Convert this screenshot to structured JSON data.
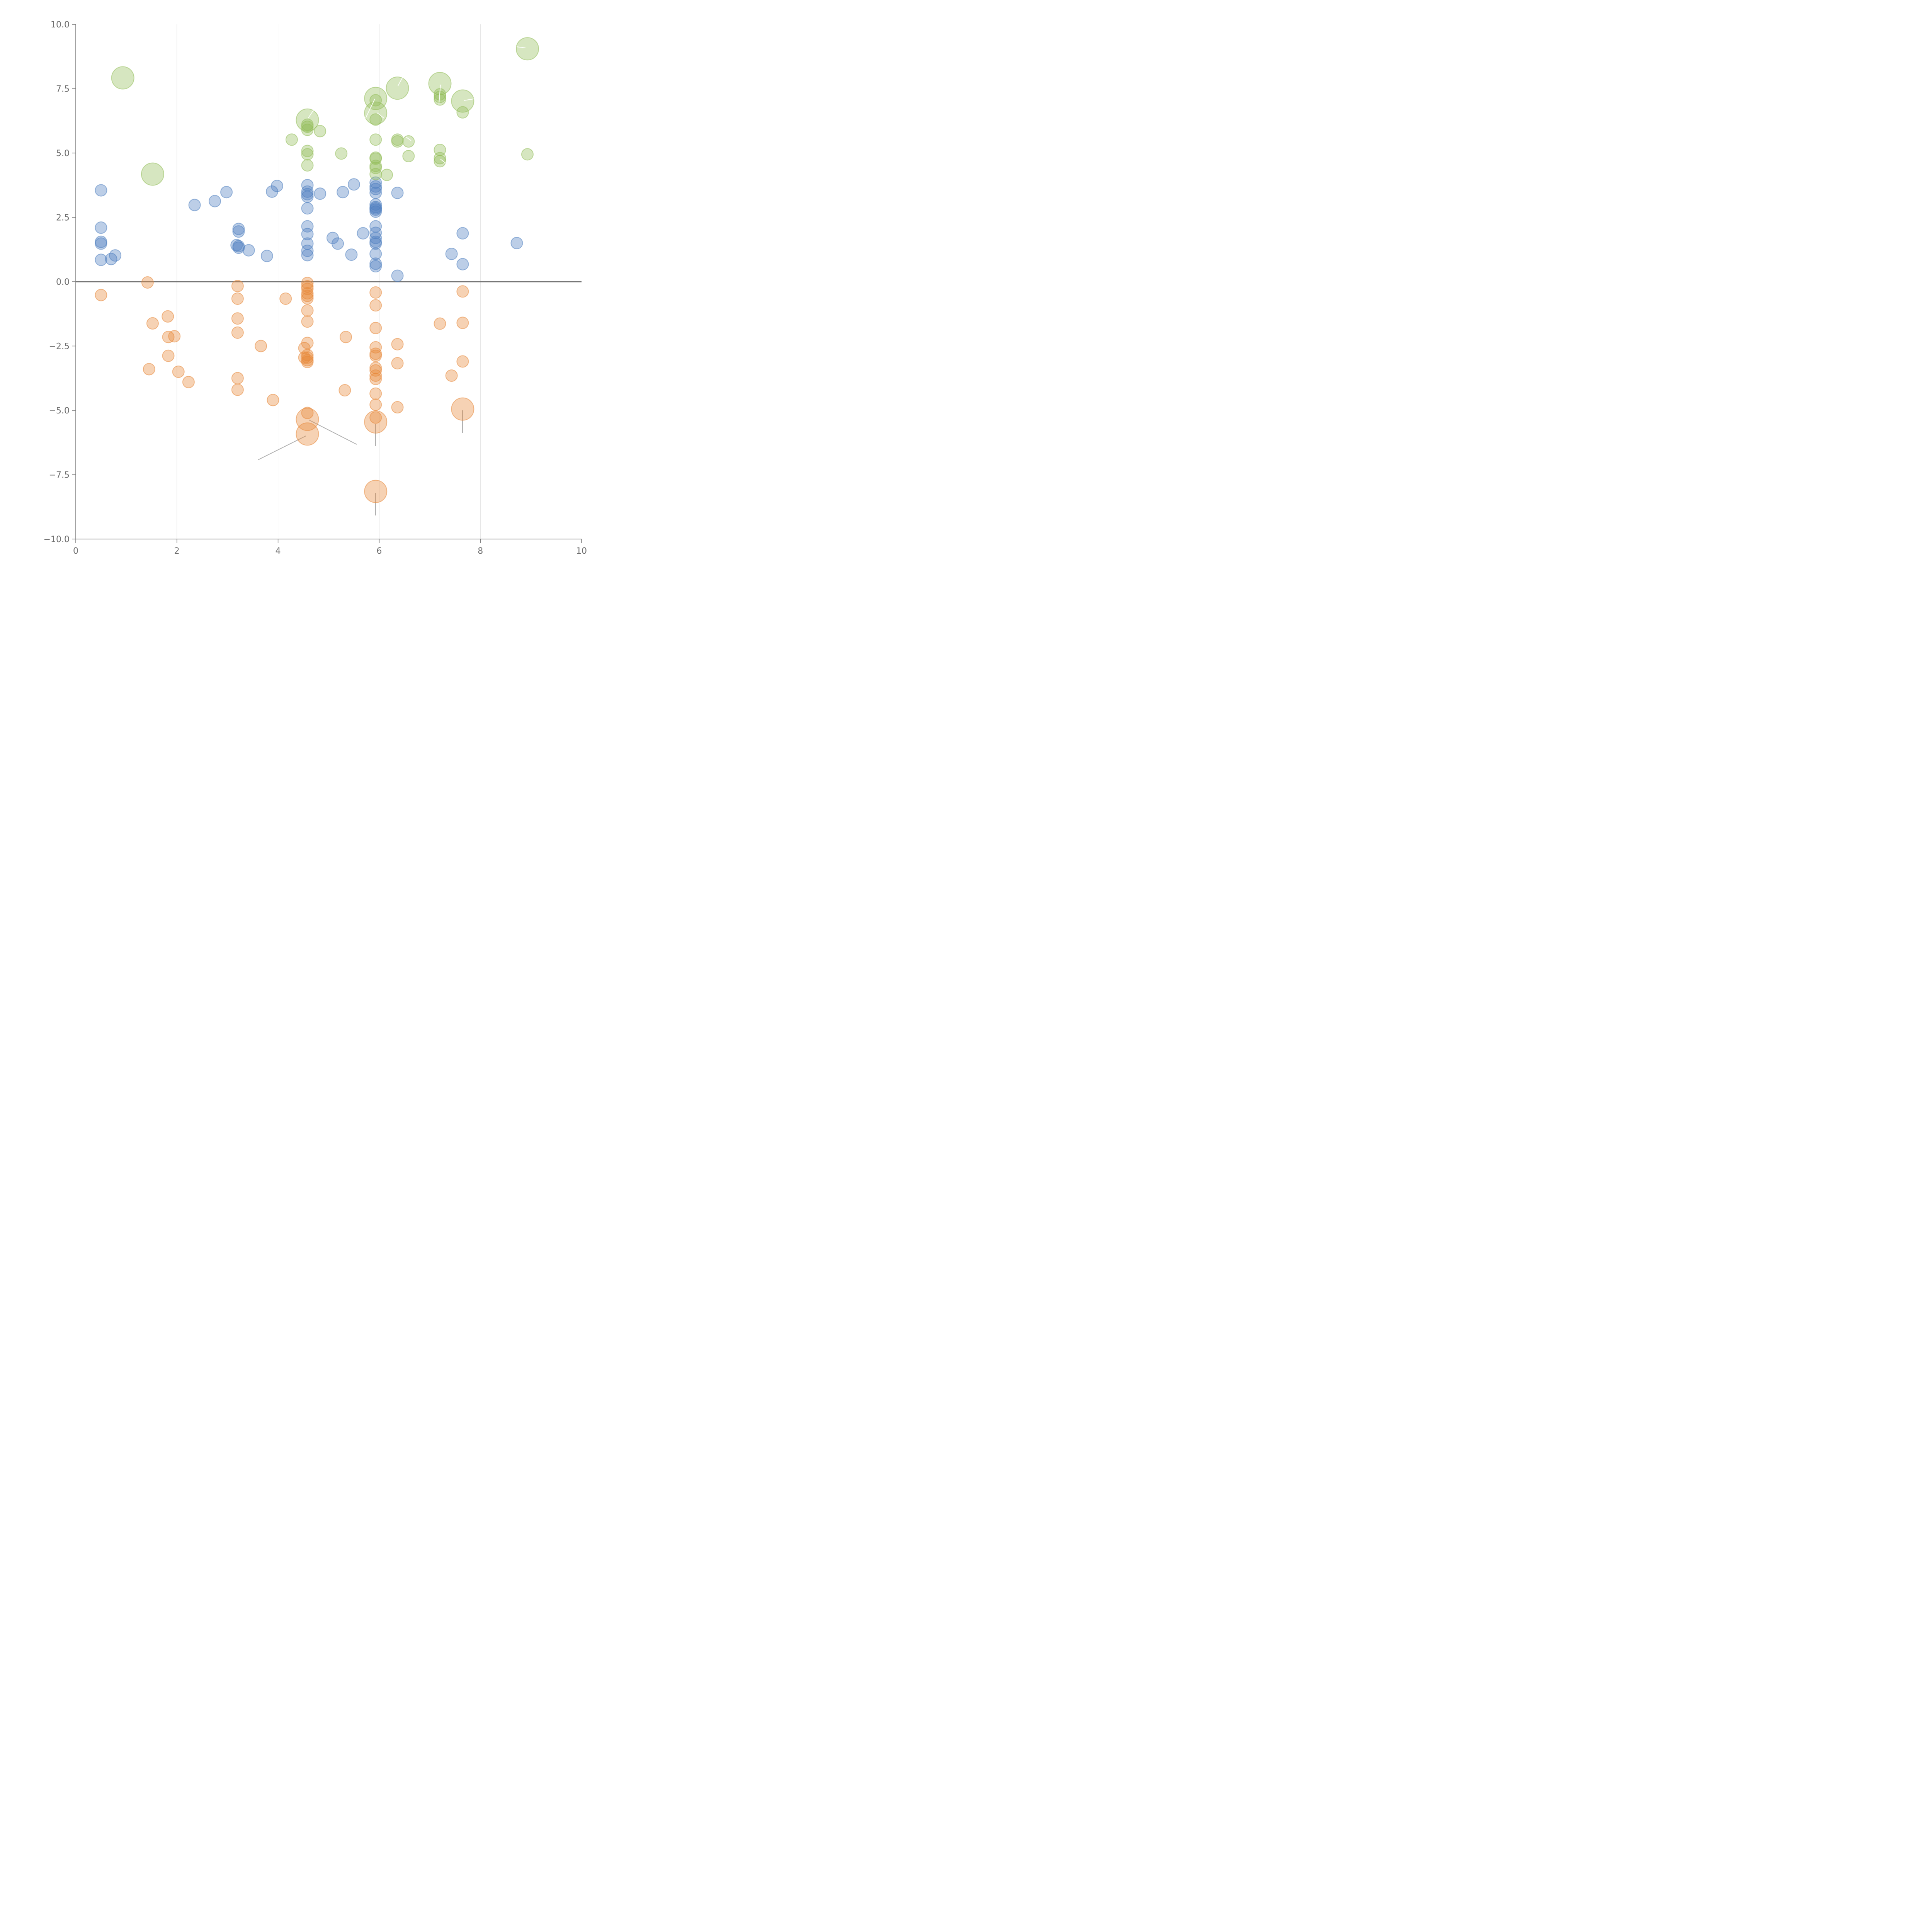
{
  "chart_data": {
    "type": "scatter",
    "title": "",
    "xlabel": "",
    "ylabel": "",
    "xlim": [
      0,
      10
    ],
    "ylim": [
      -10,
      10
    ],
    "grid": "vertical",
    "x_ticks": [
      0,
      2,
      4,
      6,
      8,
      10
    ],
    "y_ticks": [
      10.0,
      7.5,
      5.0,
      2.5,
      0.0,
      -2.5,
      -5.0,
      -7.5,
      -10.0
    ],
    "x_tick_labels": [
      "0",
      "2",
      "4",
      "6",
      "8",
      "10"
    ],
    "y_tick_labels": [
      "10.0",
      "7.5",
      "5.0",
      "2.5",
      "0.0",
      "−2.5",
      "−5.0",
      "−7.5",
      "−10.0"
    ],
    "reference_line_y": 0,
    "series": [
      {
        "name": "blue",
        "color": "#4f7fc0",
        "points": [
          [
            0.5,
            3.55,
            1
          ],
          [
            0.5,
            2.1,
            1
          ],
          [
            0.5,
            1.55,
            1
          ],
          [
            0.5,
            1.48,
            1
          ],
          [
            0.5,
            0.85,
            1
          ],
          [
            0.7,
            0.88,
            1
          ],
          [
            0.78,
            1.02,
            1
          ],
          [
            2.35,
            2.98,
            1
          ],
          [
            2.75,
            3.13,
            1
          ],
          [
            2.98,
            3.48,
            1
          ],
          [
            3.18,
            1.42,
            1
          ],
          [
            3.22,
            2.05,
            1
          ],
          [
            3.22,
            1.95,
            1
          ],
          [
            3.22,
            1.38,
            1
          ],
          [
            3.22,
            1.32,
            1
          ],
          [
            3.42,
            1.22,
            1
          ],
          [
            3.78,
            1.0,
            1
          ],
          [
            3.88,
            3.5,
            1
          ],
          [
            3.98,
            3.72,
            1
          ],
          [
            4.58,
            3.75,
            1
          ],
          [
            4.58,
            3.5,
            1
          ],
          [
            4.58,
            3.4,
            1
          ],
          [
            4.58,
            3.3,
            1
          ],
          [
            4.58,
            2.85,
            1
          ],
          [
            4.58,
            2.15,
            1
          ],
          [
            4.58,
            1.85,
            1
          ],
          [
            4.58,
            1.48,
            1
          ],
          [
            4.58,
            1.2,
            1
          ],
          [
            4.58,
            1.03,
            1
          ],
          [
            4.83,
            3.42,
            1
          ],
          [
            5.08,
            1.7,
            1
          ],
          [
            5.18,
            1.48,
            1
          ],
          [
            5.28,
            3.48,
            1
          ],
          [
            5.45,
            1.05,
            1
          ],
          [
            5.5,
            3.78,
            1
          ],
          [
            5.68,
            1.88,
            1
          ],
          [
            5.93,
            3.85,
            1
          ],
          [
            5.93,
            3.7,
            1
          ],
          [
            5.93,
            3.6,
            1
          ],
          [
            5.93,
            3.45,
            1
          ],
          [
            5.93,
            3.0,
            1
          ],
          [
            5.93,
            2.9,
            1
          ],
          [
            5.93,
            2.85,
            1
          ],
          [
            5.93,
            2.8,
            1
          ],
          [
            5.93,
            2.72,
            1
          ],
          [
            5.93,
            2.15,
            1
          ],
          [
            5.93,
            1.9,
            1
          ],
          [
            5.93,
            1.7,
            1
          ],
          [
            5.93,
            1.55,
            1
          ],
          [
            5.93,
            1.48,
            1
          ],
          [
            5.93,
            1.08,
            1
          ],
          [
            5.93,
            0.7,
            1
          ],
          [
            5.93,
            0.6,
            1
          ],
          [
            6.36,
            3.45,
            1
          ],
          [
            6.36,
            0.23,
            1
          ],
          [
            7.43,
            1.08,
            1
          ],
          [
            7.65,
            1.88,
            1
          ],
          [
            7.65,
            0.68,
            1
          ],
          [
            8.72,
            1.5,
            1
          ]
        ]
      },
      {
        "name": "orange",
        "color": "#e8893a",
        "points": [
          [
            0.5,
            -0.52,
            1
          ],
          [
            1.42,
            -0.03,
            1
          ],
          [
            1.52,
            -1.62,
            1
          ],
          [
            1.45,
            -3.4,
            1
          ],
          [
            1.82,
            -1.35,
            1
          ],
          [
            1.83,
            -2.15,
            1
          ],
          [
            1.83,
            -2.88,
            1
          ],
          [
            1.95,
            -2.12,
            1
          ],
          [
            2.03,
            -3.5,
            1
          ],
          [
            2.23,
            -3.9,
            1
          ],
          [
            3.2,
            -0.17,
            1
          ],
          [
            3.2,
            -0.66,
            1
          ],
          [
            3.2,
            -1.43,
            1
          ],
          [
            3.2,
            -1.98,
            1
          ],
          [
            3.2,
            -3.75,
            1
          ],
          [
            3.2,
            -4.2,
            1
          ],
          [
            3.66,
            -2.5,
            1
          ],
          [
            3.9,
            -4.6,
            1
          ],
          [
            4.15,
            -0.66,
            1
          ],
          [
            4.58,
            -0.05,
            1
          ],
          [
            4.58,
            -0.18,
            1
          ],
          [
            4.58,
            -0.28,
            1
          ],
          [
            4.58,
            -0.45,
            1
          ],
          [
            4.58,
            -0.55,
            1
          ],
          [
            4.58,
            -0.65,
            1
          ],
          [
            4.58,
            -1.12,
            1
          ],
          [
            4.58,
            -1.55,
            1
          ],
          [
            4.58,
            -2.38,
            1
          ],
          [
            4.52,
            -2.58,
            1
          ],
          [
            4.58,
            -2.85,
            1
          ],
          [
            4.58,
            -2.95,
            1
          ],
          [
            4.52,
            -2.95,
            1
          ],
          [
            4.58,
            -3.05,
            1
          ],
          [
            4.58,
            -3.12,
            1
          ],
          [
            4.58,
            -5.1,
            1
          ],
          [
            4.58,
            -5.35,
            3
          ],
          [
            4.58,
            -5.92,
            3
          ],
          [
            5.32,
            -4.22,
            1
          ],
          [
            5.34,
            -2.15,
            1
          ],
          [
            5.93,
            -0.42,
            1
          ],
          [
            5.93,
            -0.92,
            1
          ],
          [
            5.93,
            -1.8,
            1
          ],
          [
            5.93,
            -2.55,
            1
          ],
          [
            5.93,
            -2.8,
            1
          ],
          [
            5.93,
            -2.88,
            1
          ],
          [
            5.93,
            -3.35,
            1
          ],
          [
            5.93,
            -3.45,
            1
          ],
          [
            5.93,
            -3.65,
            1
          ],
          [
            5.93,
            -3.78,
            1
          ],
          [
            5.93,
            -4.35,
            1
          ],
          [
            5.93,
            -4.78,
            1
          ],
          [
            5.93,
            -5.28,
            1
          ],
          [
            5.93,
            -5.45,
            3
          ],
          [
            5.93,
            -8.15,
            3
          ],
          [
            6.36,
            -2.43,
            1
          ],
          [
            6.36,
            -3.17,
            1
          ],
          [
            6.36,
            -4.88,
            1
          ],
          [
            7.2,
            -1.63,
            1
          ],
          [
            7.43,
            -3.65,
            1
          ],
          [
            7.65,
            -0.38,
            1
          ],
          [
            7.65,
            -1.6,
            1
          ],
          [
            7.65,
            -3.1,
            1
          ],
          [
            7.65,
            -4.95,
            3
          ]
        ]
      },
      {
        "name": "green",
        "color": "#93bd5a",
        "points": [
          [
            0.93,
            7.92,
            3
          ],
          [
            1.52,
            4.18,
            3
          ],
          [
            4.27,
            5.52,
            1
          ],
          [
            4.58,
            6.28,
            3
          ],
          [
            4.58,
            6.1,
            1
          ],
          [
            4.58,
            6.02,
            1
          ],
          [
            4.58,
            5.9,
            1
          ],
          [
            4.58,
            5.08,
            1
          ],
          [
            4.58,
            4.95,
            1
          ],
          [
            4.58,
            4.52,
            1
          ],
          [
            4.83,
            5.85,
            1
          ],
          [
            5.25,
            4.98,
            1
          ],
          [
            5.93,
            7.12,
            3
          ],
          [
            5.93,
            7.05,
            1
          ],
          [
            5.93,
            6.55,
            3
          ],
          [
            5.93,
            6.3,
            1
          ],
          [
            5.93,
            5.52,
            1
          ],
          [
            5.93,
            4.82,
            1
          ],
          [
            5.93,
            4.78,
            1
          ],
          [
            5.93,
            4.5,
            1
          ],
          [
            5.93,
            4.42,
            1
          ],
          [
            5.93,
            4.18,
            1
          ],
          [
            6.15,
            4.15,
            1
          ],
          [
            6.36,
            7.52,
            3
          ],
          [
            6.36,
            5.52,
            1
          ],
          [
            6.36,
            5.45,
            1
          ],
          [
            6.58,
            5.45,
            1
          ],
          [
            6.58,
            4.88,
            1
          ],
          [
            7.2,
            7.7,
            3
          ],
          [
            7.2,
            7.28,
            1
          ],
          [
            7.2,
            7.18,
            1
          ],
          [
            7.2,
            7.08,
            1
          ],
          [
            7.2,
            5.12,
            1
          ],
          [
            7.2,
            4.8,
            1
          ],
          [
            7.2,
            4.68,
            1
          ],
          [
            7.65,
            7.02,
            3
          ],
          [
            7.65,
            6.58,
            1
          ],
          [
            8.93,
            9.05,
            3
          ],
          [
            8.93,
            4.95,
            1
          ]
        ]
      }
    ],
    "size_key": {
      "small": 1,
      "large": 3
    }
  }
}
